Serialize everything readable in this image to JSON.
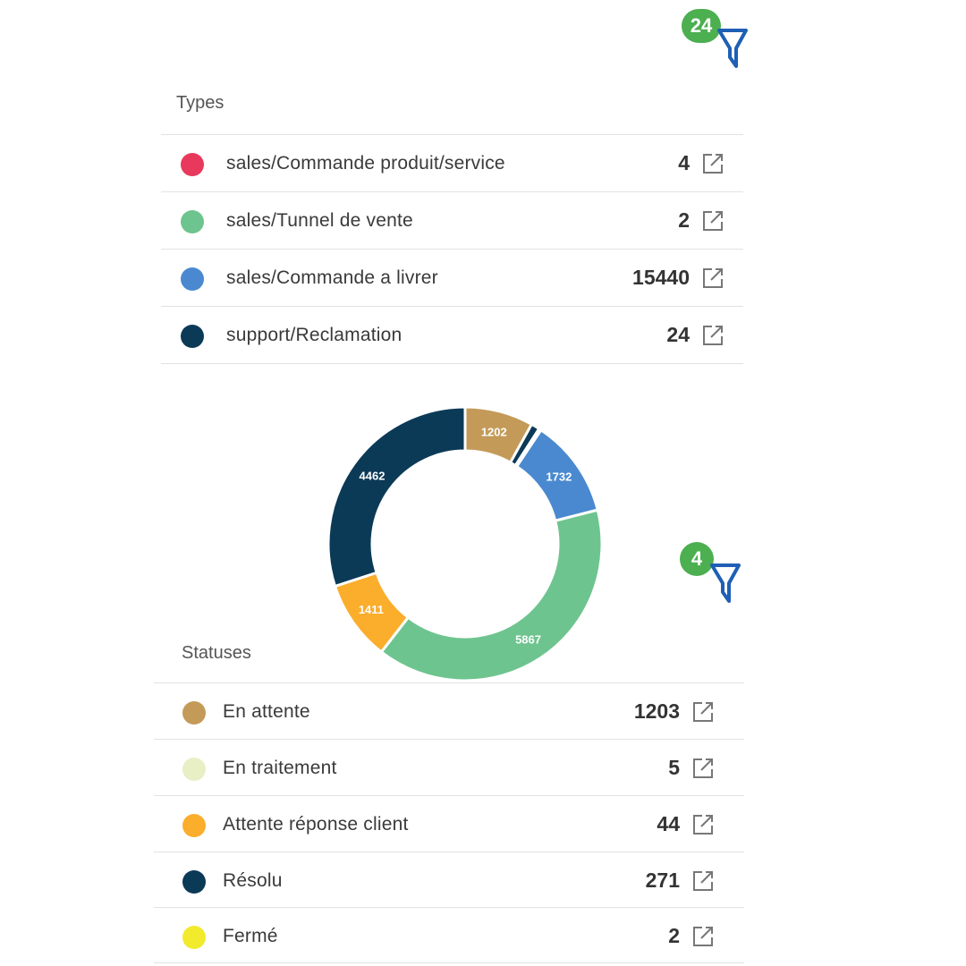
{
  "types_filter": {
    "badge": "24"
  },
  "types": {
    "title": "Types",
    "items": [
      {
        "label": "sales/Commande produit/service",
        "count": "4",
        "color": "#e8385b"
      },
      {
        "label": "sales/Tunnel de vente",
        "count": "2",
        "color": "#6ec48f"
      },
      {
        "label": "sales/Commande a livrer",
        "count": "15440",
        "color": "#4a89d0"
      },
      {
        "label": "support/Reclamation",
        "count": "24",
        "color": "#0b3a57"
      }
    ]
  },
  "statuses_filter": {
    "badge": "4"
  },
  "statuses": {
    "title": "Statuses",
    "items": [
      {
        "label": "En attente",
        "count": "1203",
        "color": "#c49a58"
      },
      {
        "label": "En traitement",
        "count": "5",
        "color": "#e8efc4"
      },
      {
        "label": "Attente réponse client",
        "count": "44",
        "color": "#fbad2c"
      },
      {
        "label": "Résolu",
        "count": "271",
        "color": "#0b3a57"
      },
      {
        "label": "Fermé",
        "count": "2",
        "color": "#f2ea2c"
      }
    ]
  },
  "chart_data": {
    "type": "pie",
    "variant": "donut",
    "slices": [
      {
        "value": 1202,
        "label": "1202",
        "color": "#c49a58"
      },
      {
        "value": 150,
        "label": "",
        "color": "#0b3a57"
      },
      {
        "value": 40,
        "label": "",
        "color": "#e7b8c8"
      },
      {
        "value": 1732,
        "label": "1732",
        "color": "#4a89d0"
      },
      {
        "value": 5867,
        "label": "5867",
        "color": "#6ec48f"
      },
      {
        "value": 1411,
        "label": "1411",
        "color": "#fbad2c"
      },
      {
        "value": 4462,
        "label": "4462",
        "color": "#0b3a57"
      }
    ]
  }
}
